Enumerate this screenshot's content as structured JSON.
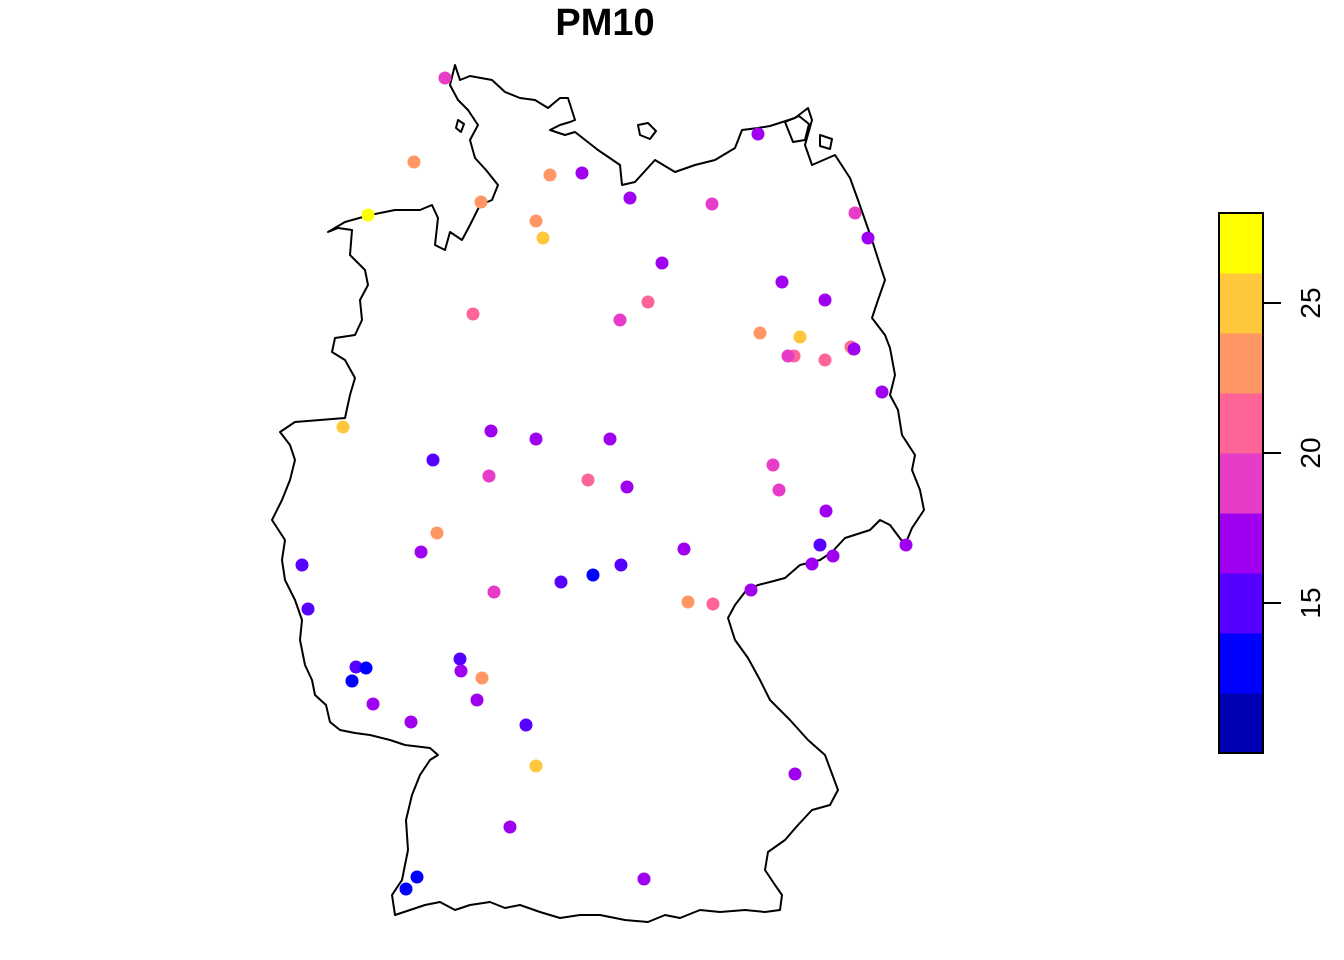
{
  "title": "PM10",
  "legend": {
    "min": 10.0,
    "max": 28.0,
    "bins": 9,
    "colors": [
      "#0000B3",
      "#0000FF",
      "#5600FF",
      "#A000F0",
      "#E63CC8",
      "#FF6496",
      "#FF9664",
      "#FFC83C",
      "#FFFF00"
    ],
    "ticks": [
      {
        "value": 15,
        "label": "15"
      },
      {
        "value": 20,
        "label": "20"
      },
      {
        "value": 25,
        "label": "25"
      }
    ]
  },
  "stations": [
    {
      "value": 19.5
    },
    {
      "value": 23.0
    },
    {
      "value": 27.8
    },
    {
      "value": 23.0
    },
    {
      "value": 23.0
    },
    {
      "value": 17.5
    },
    {
      "value": 23.0
    },
    {
      "value": 25.0
    },
    {
      "value": 16.0
    },
    {
      "value": 17.5
    },
    {
      "value": 19.5
    },
    {
      "value": 19.5
    },
    {
      "value": 17.5
    },
    {
      "value": 17.5
    },
    {
      "value": 19.5
    },
    {
      "value": 16.0
    },
    {
      "value": 16.0
    },
    {
      "value": 21.0
    },
    {
      "value": 20.0
    },
    {
      "value": 21.0
    },
    {
      "value": 23.0
    },
    {
      "value": 25.0
    },
    {
      "value": 21.0
    },
    {
      "value": 19.5
    },
    {
      "value": 21.0
    },
    {
      "value": 23.0
    },
    {
      "value": 17.5
    },
    {
      "value": 17.5
    },
    {
      "value": 25.0
    },
    {
      "value": 16.0
    },
    {
      "value": 16.0
    },
    {
      "value": 14.0
    },
    {
      "value": 19.5
    },
    {
      "value": 19.5
    },
    {
      "value": 21.0
    },
    {
      "value": 16.0
    },
    {
      "value": 19.5
    },
    {
      "value": 17.5
    },
    {
      "value": 23.0
    },
    {
      "value": 16.0
    },
    {
      "value": 17.5
    },
    {
      "value": 15.5
    },
    {
      "value": 17.5
    },
    {
      "value": 16.0
    },
    {
      "value": 14.0
    },
    {
      "value": 15.5
    },
    {
      "value": 12.0
    },
    {
      "value": 19.5
    },
    {
      "value": 14.0
    },
    {
      "value": 23.0
    },
    {
      "value": 21.0
    },
    {
      "value": 16.0
    },
    {
      "value": 14.0
    },
    {
      "value": 14.0
    },
    {
      "value": 17.5
    },
    {
      "value": 14.0
    },
    {
      "value": 12.0
    },
    {
      "value": 23.0
    },
    {
      "value": 21.0
    },
    {
      "value": 16.0
    },
    {
      "value": 17.5
    },
    {
      "value": 16.0
    },
    {
      "value": 14.0
    },
    {
      "value": 25.0
    },
    {
      "value": 16.0
    },
    {
      "value": 16.0
    },
    {
      "value": 16.0
    },
    {
      "value": 12.0
    },
    {
      "value": 12.0
    },
    {
      "value": 16.0
    },
    {
      "value": 17.5
    },
    {
      "value": 12.0
    }
  ]
}
